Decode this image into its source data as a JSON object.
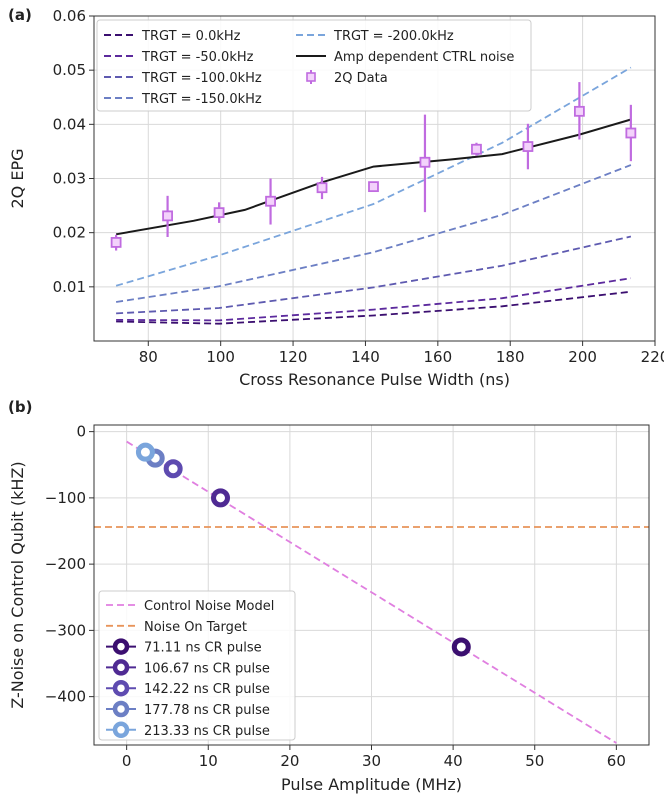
{
  "chart_data": [
    {
      "panel": "(a)",
      "type": "line",
      "xlabel": "Cross Resonance Pulse Width (ns)",
      "ylabel": "2Q EPG",
      "xlim": [
        65,
        220
      ],
      "ylim": [
        0,
        0.06
      ],
      "xticks": [
        80,
        100,
        120,
        140,
        160,
        180,
        200,
        220
      ],
      "xtick_labels": [
        "80",
        "100",
        "120",
        "140",
        "160",
        "180",
        "200",
        "220"
      ],
      "yticks": [
        0.01,
        0.02,
        0.03,
        0.04,
        0.05,
        0.06
      ],
      "ytick_labels": [
        "0.01",
        "0.02",
        "0.03",
        "0.04",
        "0.05",
        "0.06"
      ],
      "grid": true,
      "legend_position": "top-left",
      "x": [
        71.11,
        99.56,
        142.22,
        177.78,
        213.33
      ],
      "series": [
        {
          "name": "TRGT = 0.0kHz",
          "style": "dashed",
          "color": "#3b0f70",
          "values": [
            0.0036,
            0.0032,
            0.0047,
            0.0064,
            0.0091
          ]
        },
        {
          "name": "TRGT = -50.0kHz",
          "style": "dashed",
          "color": "#5c2a9d",
          "values": [
            0.0039,
            0.0038,
            0.0058,
            0.0079,
            0.0116
          ]
        },
        {
          "name": "TRGT = -100.0kHz",
          "style": "dashed",
          "color": "#5e5ab0",
          "values": [
            0.0051,
            0.0061,
            0.0099,
            0.0139,
            0.0193
          ]
        },
        {
          "name": "TRGT = -150.0kHz",
          "style": "dashed",
          "color": "#6c7fc4",
          "values": [
            0.0072,
            0.0101,
            0.0164,
            0.0233,
            0.0325
          ]
        },
        {
          "name": "TRGT = -200.0kHz",
          "style": "dashed",
          "color": "#7aa5dc",
          "values": [
            0.0102,
            0.0158,
            0.0253,
            0.0366,
            0.0505
          ]
        },
        {
          "name": "Amp dependent CTRL noise",
          "style": "solid",
          "color": "#1a1a1a",
          "x": [
            71.11,
            92.5,
            106.67,
            128,
            142.22,
            163.5,
            177.78,
            199.11,
            213.33
          ],
          "values": [
            0.0197,
            0.0222,
            0.0242,
            0.0293,
            0.0322,
            0.0335,
            0.0345,
            0.0381,
            0.0409
          ]
        },
        {
          "name": "2Q Data",
          "style": "errorbar",
          "color": "#c06be0",
          "x": [
            71.11,
            85.33,
            99.56,
            113.78,
            128.0,
            142.22,
            156.44,
            170.67,
            184.89,
            199.11,
            213.33
          ],
          "values": [
            0.0182,
            0.0231,
            0.0237,
            0.0258,
            0.0283,
            0.0285,
            0.033,
            0.0354,
            0.0359,
            0.0424,
            0.0384
          ],
          "err_low": [
            0.0167,
            0.0192,
            0.0218,
            0.0215,
            0.0262,
            0.0278,
            0.0238,
            0.0342,
            0.0317,
            0.0372,
            0.0332
          ],
          "err_high": [
            0.0196,
            0.0268,
            0.0256,
            0.03,
            0.0303,
            0.0292,
            0.0418,
            0.0366,
            0.0401,
            0.0478,
            0.0436
          ]
        }
      ],
      "legend": [
        "TRGT = 0.0kHz",
        "TRGT = -50.0kHz",
        "TRGT = -100.0kHz",
        "TRGT = -150.0kHz",
        "TRGT = -200.0kHz",
        "Amp dependent CTRL noise",
        "2Q Data"
      ]
    },
    {
      "panel": "(b)",
      "type": "scatter",
      "xlabel": "Pulse Amplitude (MHz)",
      "ylabel": "Z-Noise on Control Qubit (kHZ)",
      "xlim": [
        -4,
        64
      ],
      "ylim": [
        -473,
        10
      ],
      "xticks": [
        0,
        10,
        20,
        30,
        40,
        50,
        60
      ],
      "xtick_labels": [
        "0",
        "10",
        "20",
        "30",
        "40",
        "50",
        "60"
      ],
      "yticks": [
        0,
        -100,
        -200,
        -300,
        -400
      ],
      "ytick_labels": [
        "0",
        "−100",
        "−200",
        "−300",
        "−400"
      ],
      "grid": true,
      "legend_position": "bottom-left",
      "model_line": {
        "name": "Control Noise Model",
        "color": "#e07fe0",
        "x": [
          0,
          60
        ],
        "y": [
          -15,
          -470
        ]
      },
      "target_line": {
        "name": "Noise On Target",
        "color": "#e8945a",
        "y": -144
      },
      "points": [
        {
          "name": "71.11 ns CR pulse",
          "color": "#3b0f70",
          "x": 41.0,
          "y": -325
        },
        {
          "name": "106.67 ns CR pulse",
          "color": "#4f2a93",
          "x": 11.5,
          "y": -100
        },
        {
          "name": "142.22 ns CR pulse",
          "color": "#5e4bb0",
          "x": 5.7,
          "y": -56
        },
        {
          "name": "177.78 ns CR pulse",
          "color": "#6c7fc4",
          "x": 3.5,
          "y": -40
        },
        {
          "name": "213.33 ns CR pulse",
          "color": "#7aa5dc",
          "x": 2.3,
          "y": -31
        }
      ],
      "legend": [
        "Control Noise Model",
        "Noise On Target",
        "71.11 ns CR pulse",
        "106.67 ns CR pulse",
        "142.22 ns CR pulse",
        "177.78 ns CR pulse",
        "213.33 ns CR pulse"
      ]
    }
  ]
}
